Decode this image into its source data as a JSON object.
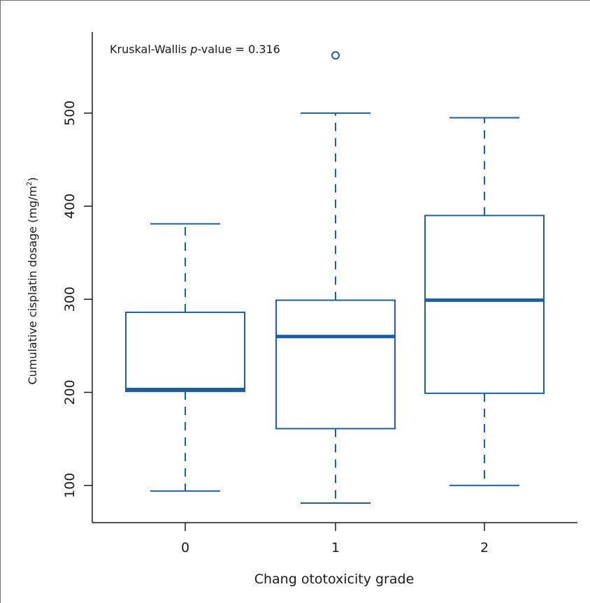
{
  "chart_data": {
    "type": "box",
    "categories": [
      "0",
      "1",
      "2"
    ],
    "boxes": [
      {
        "category": "0",
        "min": 94,
        "q1": 201,
        "median": 203,
        "q3": 286,
        "max": 381,
        "outliers": []
      },
      {
        "category": "1",
        "min": 81,
        "q1": 161,
        "median": 260,
        "q3": 299,
        "max": 500,
        "outliers": [
          562
        ]
      },
      {
        "category": "2",
        "min": 100,
        "q1": 199,
        "median": 299,
        "q3": 390,
        "max": 495,
        "outliers": []
      }
    ],
    "title": "",
    "xlabel": "Chang ototoxicity grade",
    "ylabel_main": "Cumulative cisplatin dosage (mg/m",
    "ylabel_sup": "2",
    "ylabel_close": ")",
    "ylim": [
      60,
      590
    ],
    "yticks": [
      100,
      200,
      300,
      400,
      500
    ],
    "annotation": {
      "prefix": "Kruskal-Wallis ",
      "italic": "p",
      "suffix": "-value = 0.316"
    },
    "grid": false,
    "color": "#1f5e9e"
  }
}
